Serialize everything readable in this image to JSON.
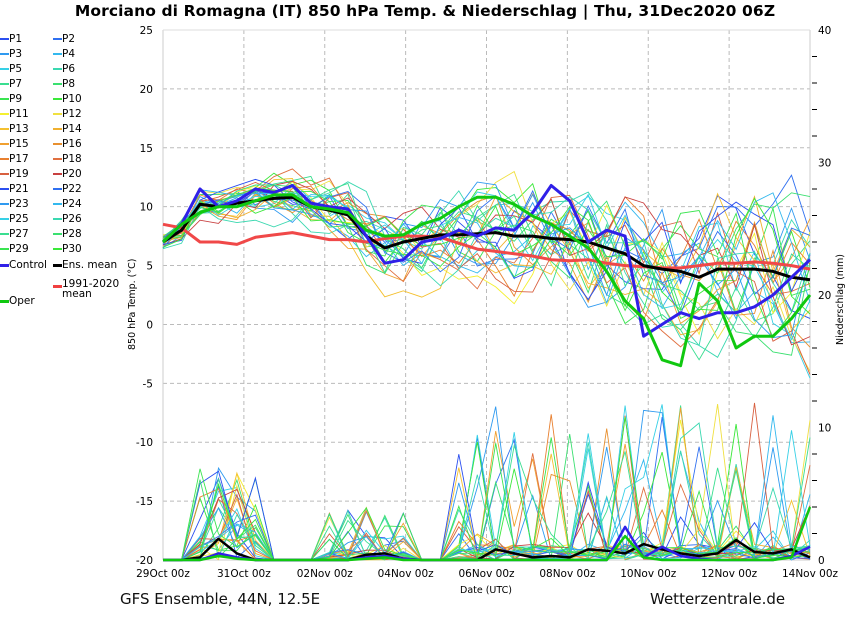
{
  "title": "Morciano di Romagna  (IT)  850 hPa Temp. & Niederschlag | Thu, 31Dec2020 06Z",
  "footer": {
    "left": "GFS Ensemble, 44N, 12.5E",
    "right": "Wetterzentrale.de"
  },
  "legend": [
    {
      "label": "P1",
      "color": "#2b4ff0"
    },
    {
      "label": "P2",
      "color": "#3070f0"
    },
    {
      "label": "P3",
      "color": "#2f9af0"
    },
    {
      "label": "P4",
      "color": "#33b8ee"
    },
    {
      "label": "P5",
      "color": "#36d0e6"
    },
    {
      "label": "P6",
      "color": "#3ad8b0"
    },
    {
      "label": "P7",
      "color": "#3ade90"
    },
    {
      "label": "P8",
      "color": "#3ae070"
    },
    {
      "label": "P9",
      "color": "#3ae450"
    },
    {
      "label": "P10",
      "color": "#3ae83a"
    },
    {
      "label": "P11",
      "color": "#f4f030"
    },
    {
      "label": "P12",
      "color": "#f0e040"
    },
    {
      "label": "P13",
      "color": "#f4c030"
    },
    {
      "label": "P14",
      "color": "#f0b030"
    },
    {
      "label": "P15",
      "color": "#f0a030"
    },
    {
      "label": "P16",
      "color": "#e89030"
    },
    {
      "label": "P17",
      "color": "#e88030"
    },
    {
      "label": "P18",
      "color": "#e07040"
    },
    {
      "label": "P19",
      "color": "#d86040"
    },
    {
      "label": "P20",
      "color": "#c84040"
    },
    {
      "label": "P21",
      "color": "#2b4ff0"
    },
    {
      "label": "P22",
      "color": "#3070f0"
    },
    {
      "label": "P23",
      "color": "#2f9af0"
    },
    {
      "label": "P24",
      "color": "#33b8ee"
    },
    {
      "label": "P25",
      "color": "#36d0e6"
    },
    {
      "label": "P26",
      "color": "#3ad8b0"
    },
    {
      "label": "P27",
      "color": "#3ade90"
    },
    {
      "label": "P28",
      "color": "#3ae070"
    },
    {
      "label": "P29",
      "color": "#3ae450"
    },
    {
      "label": "P30",
      "color": "#3ae83a"
    },
    {
      "label": "Control",
      "color": "#3020e8"
    },
    {
      "label": "Ens. mean",
      "color": "#000000"
    },
    {
      "label": "1991-2020\nmean",
      "color": "#f04040"
    },
    {
      "label": "Oper",
      "color": "#10c810"
    }
  ],
  "chart_data": {
    "type": "line",
    "title": "Morciano di Romagna  (IT)  850 hPa Temp. & Niederschlag | Thu, 31Dec2020 06Z",
    "xlabel": "Date (UTC)",
    "ylabel": "850 hPa Temp. (°C)",
    "y2label": "Niederschlag (mm)",
    "xticks": [
      "29Oct 00z",
      "31Oct 00z",
      "02Nov 00z",
      "04Nov 00z",
      "06Nov 00z",
      "08Nov 00z",
      "10Nov 00z",
      "12Nov 00z",
      "14Nov 00z"
    ],
    "x_range_days": [
      0,
      16
    ],
    "ylim": [
      -20,
      25
    ],
    "yticks": [
      -20,
      -15,
      -10,
      -5,
      0,
      5,
      10,
      15,
      20,
      25
    ],
    "y2lim": [
      0,
      40
    ],
    "y2ticks": [
      0,
      10,
      20,
      30,
      40
    ],
    "grid": true,
    "legend_position": "left-outside",
    "time_step_hours": 12,
    "series": [
      {
        "name": "Control",
        "axis": "temp",
        "values": [
          7,
          8.5,
          11.5,
          10,
          10.5,
          11.5,
          11.2,
          11.8,
          10.3,
          10,
          9.8,
          7.5,
          5.2,
          5.5,
          7,
          7.3,
          8,
          7.5,
          8.2,
          8,
          9.5,
          11.8,
          10.5,
          7,
          8,
          7.5,
          -1,
          0,
          1,
          0.5,
          1,
          1,
          1.5,
          2.5,
          4,
          5.5
        ]
      },
      {
        "name": "Ens. mean",
        "axis": "temp",
        "values": [
          7,
          8,
          10.2,
          10,
          10.3,
          10.5,
          10.7,
          10.8,
          10,
          9.7,
          9.3,
          7.5,
          6.5,
          7,
          7.3,
          7.6,
          7.6,
          7.7,
          7.8,
          7.5,
          7.5,
          7.3,
          7.2,
          7,
          6.5,
          6,
          5,
          4.7,
          4.5,
          4,
          4.7,
          4.7,
          4.7,
          4.5,
          4,
          3.8
        ]
      },
      {
        "name": "1991-2020 mean",
        "axis": "temp",
        "values": [
          8.5,
          8.2,
          7,
          7,
          6.8,
          7.4,
          7.6,
          7.8,
          7.5,
          7.2,
          7.2,
          7,
          7.3,
          7.5,
          7.5,
          7.4,
          6.9,
          6.4,
          6.2,
          6,
          5.8,
          5.5,
          5.4,
          5.5,
          5.2,
          5,
          4.9,
          4.8,
          4.8,
          5,
          5.2,
          5.2,
          5.3,
          5.2,
          5,
          4.7
        ]
      },
      {
        "name": "Oper",
        "axis": "temp",
        "values": [
          7,
          8.5,
          9.5,
          10,
          10,
          10.5,
          11,
          11,
          10,
          9.8,
          9.5,
          8,
          7.5,
          7.6,
          8.5,
          9,
          10,
          10.8,
          10.8,
          10.2,
          9.2,
          8.5,
          7.5,
          6.5,
          4.5,
          2,
          0.5,
          -3,
          -3.5,
          3.5,
          2,
          -2,
          -1,
          -1,
          0.5,
          2.5
        ]
      },
      {
        "name": "Ens. mean precip",
        "axis": "precip",
        "values": [
          0,
          0,
          0.2,
          1.6,
          0.5,
          0,
          0,
          0,
          0,
          0,
          0,
          0.4,
          0.5,
          0.1,
          0,
          0,
          0,
          0,
          0.8,
          0.5,
          0.2,
          0.3,
          0.2,
          0.8,
          0.7,
          0.5,
          1.2,
          0.8,
          0.5,
          0.3,
          0.5,
          1.5,
          0.6,
          0.5,
          0.8,
          0.2
        ]
      },
      {
        "name": "Control precip",
        "axis": "precip",
        "values": [
          0,
          0,
          0,
          0.5,
          0.2,
          0,
          0,
          0,
          0,
          0,
          0,
          0.2,
          0.3,
          0.1,
          0,
          0,
          0,
          0,
          0,
          0,
          0,
          0,
          0,
          0,
          0,
          2.5,
          0.2,
          1,
          0.3,
          0.1,
          0,
          0,
          0,
          0,
          0.3,
          1
        ]
      },
      {
        "name": "Oper precip",
        "axis": "precip",
        "values": [
          0,
          0,
          0,
          0.3,
          0.1,
          0,
          0,
          0,
          0,
          0,
          0,
          0.1,
          0.2,
          0,
          0,
          0,
          0,
          0,
          0,
          0,
          0,
          0,
          0,
          0,
          0,
          1.8,
          0.2,
          0,
          0,
          0,
          0,
          0,
          0,
          0,
          0.2,
          4
        ]
      }
    ]
  }
}
